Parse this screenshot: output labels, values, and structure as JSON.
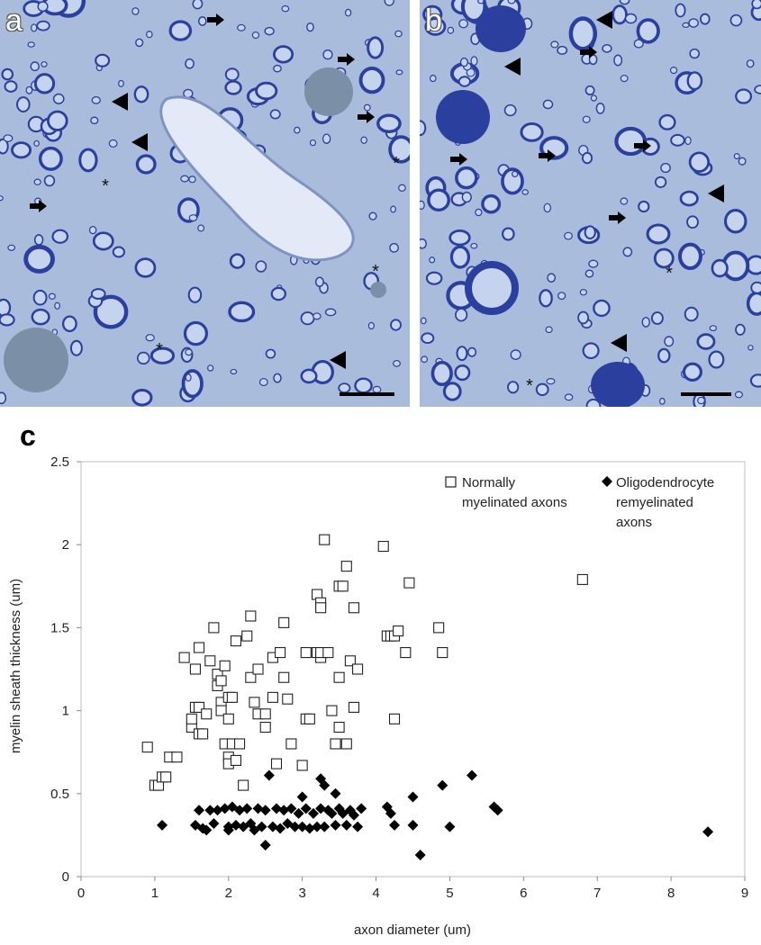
{
  "panels": {
    "a": {
      "label": "a"
    },
    "b": {
      "label": "b"
    },
    "c": {
      "label": "c"
    }
  },
  "colors": {
    "stain_background": "#a9bcdc",
    "myelin": "#2a3f9e",
    "axon": "#c5d3ef",
    "lipid_droplet": "#7b8fa6",
    "marker": "#000000"
  },
  "micrograph_markers": {
    "arrowhead": "arrowhead-icon",
    "arrow": "arrow-icon",
    "asterisk": "*"
  },
  "chart_data": {
    "type": "scatter",
    "xlabel": "axon diameter (um)",
    "ylabel": "myelin sheath thickness (um)",
    "xlim": [
      0,
      9
    ],
    "ylim": [
      0,
      2.5
    ],
    "xticks": [
      "0",
      "1",
      "2",
      "3",
      "4",
      "5",
      "6",
      "7",
      "8",
      "9"
    ],
    "yticks": [
      "0",
      "0.5",
      "1",
      "1.5",
      "2",
      "2.5"
    ],
    "grid": false,
    "legend_position": "top-right",
    "legend_entries": [
      {
        "line1": "Normally",
        "line2": "myelinated axons",
        "line3": ""
      },
      {
        "line1": "Oligodendrocyte",
        "line2": "remyelinated",
        "line3": "axons"
      }
    ],
    "series": [
      {
        "name": "Normally myelinated axons",
        "marker": "open-square",
        "points": [
          [
            0.9,
            0.78
          ],
          [
            1.0,
            0.55
          ],
          [
            1.05,
            0.55
          ],
          [
            1.1,
            0.6
          ],
          [
            1.15,
            0.6
          ],
          [
            1.2,
            0.72
          ],
          [
            1.3,
            0.72
          ],
          [
            1.4,
            1.32
          ],
          [
            1.5,
            0.9
          ],
          [
            1.5,
            0.95
          ],
          [
            1.55,
            1.02
          ],
          [
            1.55,
            1.25
          ],
          [
            1.6,
            1.38
          ],
          [
            1.6,
            0.86
          ],
          [
            1.65,
            0.86
          ],
          [
            1.6,
            1.02
          ],
          [
            1.7,
            0.98
          ],
          [
            1.75,
            1.3
          ],
          [
            1.8,
            1.5
          ],
          [
            1.85,
            1.15
          ],
          [
            1.85,
            1.22
          ],
          [
            1.9,
            1.18
          ],
          [
            1.9,
            1.05
          ],
          [
            1.9,
            1.0
          ],
          [
            1.95,
            1.27
          ],
          [
            1.95,
            0.8
          ],
          [
            2.0,
            1.08
          ],
          [
            2.0,
            0.95
          ],
          [
            2.0,
            0.72
          ],
          [
            2.0,
            0.68
          ],
          [
            2.05,
            1.08
          ],
          [
            2.05,
            0.8
          ],
          [
            2.1,
            1.42
          ],
          [
            2.1,
            0.7
          ],
          [
            2.15,
            0.8
          ],
          [
            2.2,
            0.55
          ],
          [
            2.25,
            1.45
          ],
          [
            2.3,
            1.57
          ],
          [
            2.3,
            1.2
          ],
          [
            2.35,
            1.05
          ],
          [
            2.4,
            1.25
          ],
          [
            2.4,
            0.98
          ],
          [
            2.5,
            0.98
          ],
          [
            2.5,
            0.9
          ],
          [
            2.6,
            1.08
          ],
          [
            2.6,
            1.32
          ],
          [
            2.65,
            0.68
          ],
          [
            2.7,
            1.35
          ],
          [
            2.75,
            1.53
          ],
          [
            2.75,
            1.2
          ],
          [
            2.8,
            1.07
          ],
          [
            2.85,
            0.8
          ],
          [
            3.0,
            0.67
          ],
          [
            3.05,
            1.35
          ],
          [
            3.05,
            0.95
          ],
          [
            3.1,
            0.95
          ],
          [
            3.2,
            1.35
          ],
          [
            3.2,
            1.7
          ],
          [
            3.25,
            1.65
          ],
          [
            3.25,
            1.62
          ],
          [
            3.25,
            1.32
          ],
          [
            3.25,
            1.35
          ],
          [
            3.3,
            2.03
          ],
          [
            3.35,
            1.35
          ],
          [
            3.4,
            1.0
          ],
          [
            3.45,
            0.8
          ],
          [
            3.5,
            1.75
          ],
          [
            3.5,
            1.2
          ],
          [
            3.5,
            0.9
          ],
          [
            3.55,
            1.75
          ],
          [
            3.6,
            1.87
          ],
          [
            3.6,
            0.8
          ],
          [
            3.65,
            1.3
          ],
          [
            3.7,
            1.62
          ],
          [
            3.7,
            1.02
          ],
          [
            3.75,
            1.25
          ],
          [
            4.1,
            1.99
          ],
          [
            4.15,
            1.45
          ],
          [
            4.2,
            1.45
          ],
          [
            4.25,
            0.95
          ],
          [
            4.25,
            1.45
          ],
          [
            4.3,
            1.48
          ],
          [
            4.4,
            1.35
          ],
          [
            4.45,
            1.77
          ],
          [
            4.85,
            1.5
          ],
          [
            4.9,
            1.35
          ],
          [
            6.8,
            1.79
          ]
        ]
      },
      {
        "name": "Oligodendrocyte remyelinated axons",
        "marker": "filled-diamond",
        "points": [
          [
            1.1,
            0.31
          ],
          [
            1.55,
            0.31
          ],
          [
            1.6,
            0.4
          ],
          [
            1.65,
            0.29
          ],
          [
            1.7,
            0.28
          ],
          [
            1.75,
            0.4
          ],
          [
            1.8,
            0.32
          ],
          [
            1.85,
            0.4
          ],
          [
            1.95,
            0.41
          ],
          [
            2.0,
            0.3
          ],
          [
            2.0,
            0.28
          ],
          [
            2.05,
            0.42
          ],
          [
            2.1,
            0.31
          ],
          [
            2.15,
            0.4
          ],
          [
            2.2,
            0.3
          ],
          [
            2.25,
            0.41
          ],
          [
            2.3,
            0.32
          ],
          [
            2.35,
            0.28
          ],
          [
            2.4,
            0.41
          ],
          [
            2.45,
            0.3
          ],
          [
            2.5,
            0.19
          ],
          [
            2.5,
            0.4
          ],
          [
            2.55,
            0.61
          ],
          [
            2.6,
            0.3
          ],
          [
            2.65,
            0.41
          ],
          [
            2.7,
            0.29
          ],
          [
            2.75,
            0.4
          ],
          [
            2.8,
            0.32
          ],
          [
            2.85,
            0.41
          ],
          [
            2.9,
            0.3
          ],
          [
            2.95,
            0.38
          ],
          [
            3.0,
            0.3
          ],
          [
            3.05,
            0.41
          ],
          [
            3.1,
            0.29
          ],
          [
            3.15,
            0.38
          ],
          [
            3.2,
            0.3
          ],
          [
            3.25,
            0.41
          ],
          [
            3.25,
            0.59
          ],
          [
            3.3,
            0.55
          ],
          [
            3.3,
            0.3
          ],
          [
            3.35,
            0.4
          ],
          [
            3.4,
            0.38
          ],
          [
            3.45,
            0.31
          ],
          [
            3.5,
            0.41
          ],
          [
            3.55,
            0.38
          ],
          [
            3.6,
            0.31
          ],
          [
            3.65,
            0.4
          ],
          [
            3.7,
            0.37
          ],
          [
            3.75,
            0.3
          ],
          [
            3.8,
            0.41
          ],
          [
            3.0,
            0.48
          ],
          [
            3.45,
            0.5
          ],
          [
            4.15,
            0.42
          ],
          [
            4.2,
            0.38
          ],
          [
            4.25,
            0.31
          ],
          [
            4.5,
            0.48
          ],
          [
            4.5,
            0.31
          ],
          [
            4.6,
            0.13
          ],
          [
            4.9,
            0.55
          ],
          [
            5.0,
            0.3
          ],
          [
            5.3,
            0.61
          ],
          [
            5.6,
            0.42
          ],
          [
            5.65,
            0.4
          ],
          [
            8.5,
            0.27
          ]
        ]
      }
    ]
  }
}
